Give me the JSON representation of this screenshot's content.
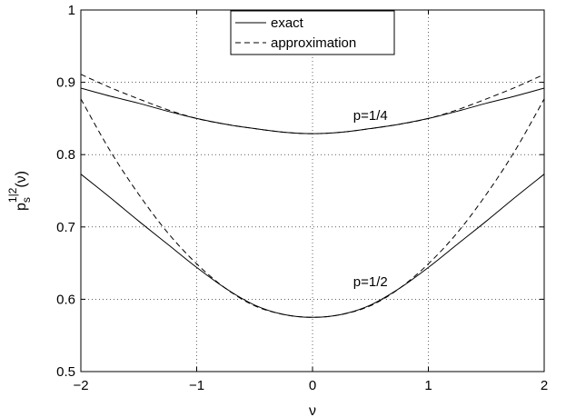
{
  "chart_data": {
    "type": "line",
    "xlabel": "ν",
    "ylabel": {
      "base": "p",
      "subscript": "s",
      "superscript": "1|2",
      "suffix": "(ν)"
    },
    "xlim": [
      -2,
      2
    ],
    "ylim": [
      0.5,
      1
    ],
    "xticks": [
      -2,
      -1,
      0,
      1,
      2
    ],
    "xtick_labels": [
      "−2",
      "−1",
      "0",
      "1",
      "2"
    ],
    "yticks": [
      0.5,
      0.6,
      0.7,
      0.8,
      0.9,
      1
    ],
    "ytick_labels": [
      "0.5",
      "0.6",
      "0.7",
      "0.8",
      "0.9",
      "1"
    ],
    "grid": true,
    "legend": {
      "placement": "top-center",
      "entries": [
        {
          "label": "exact",
          "style": "solid"
        },
        {
          "label": "approximation",
          "style": "dashed"
        }
      ]
    },
    "series": [
      {
        "name": "exact",
        "group": "p=1/4",
        "style": "solid",
        "x": [
          -2,
          -1.75,
          -1.5,
          -1.25,
          -1,
          -0.75,
          -0.5,
          -0.25,
          0,
          0.25,
          0.5,
          0.75,
          1,
          1.25,
          1.5,
          1.75,
          2
        ],
        "y": [
          0.892,
          0.881,
          0.871,
          0.86,
          0.85,
          0.842,
          0.836,
          0.831,
          0.829,
          0.831,
          0.836,
          0.842,
          0.85,
          0.86,
          0.871,
          0.881,
          0.892
        ]
      },
      {
        "name": "approximation",
        "group": "p=1/4",
        "style": "dashed",
        "x": [
          -2,
          -1.75,
          -1.5,
          -1.25,
          -1,
          -0.75,
          -0.5,
          -0.25,
          0,
          0.25,
          0.5,
          0.75,
          1,
          1.25,
          1.5,
          1.75,
          2
        ],
        "y": [
          0.911,
          0.893,
          0.877,
          0.862,
          0.85,
          0.842,
          0.836,
          0.831,
          0.829,
          0.831,
          0.836,
          0.842,
          0.85,
          0.862,
          0.877,
          0.893,
          0.911
        ]
      },
      {
        "name": "exact",
        "group": "p=1/2",
        "style": "solid",
        "x": [
          -2,
          -1.75,
          -1.5,
          -1.25,
          -1,
          -0.75,
          -0.5,
          -0.25,
          0,
          0.25,
          0.5,
          0.75,
          1,
          1.25,
          1.5,
          1.75,
          2
        ],
        "y": [
          0.773,
          0.741,
          0.708,
          0.676,
          0.644,
          0.615,
          0.592,
          0.579,
          0.575,
          0.579,
          0.592,
          0.615,
          0.644,
          0.676,
          0.708,
          0.741,
          0.773
        ]
      },
      {
        "name": "approximation",
        "group": "p=1/2",
        "style": "dashed",
        "x": [
          -2,
          -1.75,
          -1.5,
          -1.25,
          -1,
          -0.75,
          -0.5,
          -0.25,
          0,
          0.25,
          0.5,
          0.75,
          1,
          1.25,
          1.5,
          1.75,
          2
        ],
        "y": [
          0.877,
          0.806,
          0.745,
          0.692,
          0.649,
          0.615,
          0.591,
          0.579,
          0.575,
          0.579,
          0.591,
          0.615,
          0.649,
          0.692,
          0.745,
          0.806,
          0.877
        ]
      }
    ],
    "annotations": [
      {
        "text": "p=1/4",
        "x": 0.5,
        "y": 0.848
      },
      {
        "text": "p=1/2",
        "x": 0.5,
        "y": 0.618
      }
    ]
  }
}
